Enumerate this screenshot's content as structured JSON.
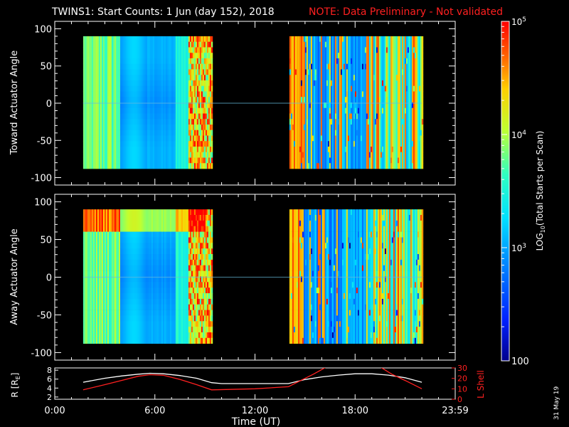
{
  "title": {
    "main": "TWINS1: Start Counts:  1 Jun (day 152), 2018",
    "note": "NOTE: Data Preliminary - Not validated",
    "note_color": "#ff2020"
  },
  "stamp": "31 May 19",
  "colors": {
    "background": "#000000",
    "foreground": "#ffffff",
    "accent_red": "#ff2020"
  },
  "chart_data": [
    {
      "type": "heatmap",
      "panel": "top",
      "ylabel": "Toward Actuator Angle",
      "ylim": [
        -110,
        110
      ],
      "yticks": [
        100,
        50,
        0,
        -50,
        -100
      ],
      "data_y_range": [
        -88,
        90
      ],
      "x_range_hours": [
        0,
        24
      ],
      "data_blocks_hours": [
        [
          1.7,
          9.4
        ],
        [
          14.0,
          22.0
        ]
      ],
      "colorscale": "rainbow (blue-cyan-yellow-red)"
    },
    {
      "type": "heatmap",
      "panel": "middle",
      "ylabel": "Away Actuator Angle",
      "ylim": [
        -110,
        110
      ],
      "yticks": [
        100,
        50,
        0,
        -50,
        -100
      ],
      "data_y_range": [
        -88,
        90
      ],
      "x_range_hours": [
        0,
        24
      ],
      "data_blocks_hours": [
        [
          1.7,
          9.4
        ],
        [
          14.0,
          22.0
        ]
      ],
      "colorscale": "rainbow (blue-cyan-yellow-red)"
    },
    {
      "type": "line",
      "panel": "orbit",
      "ylabel_left": "R [R",
      "ylabel_left_sub": "E",
      "ylabel_left_end": "]",
      "ylabel_right": "L Shell",
      "yticks_left": [
        "8",
        "6",
        "4",
        "2"
      ],
      "yticks_right": [
        "30",
        "20",
        "10",
        "0"
      ],
      "ylim_left": [
        1.5,
        8.5
      ],
      "ylim_right": [
        0,
        30
      ],
      "series": [
        {
          "name": "R",
          "color": "#ffffff",
          "x": [
            1.7,
            3,
            4,
            5,
            5.7,
            6.5,
            7.5,
            8.5,
            9.4,
            10,
            12,
            14,
            15,
            16,
            17,
            18,
            19,
            20,
            21,
            22
          ],
          "y": [
            5.3,
            6.2,
            6.7,
            7.1,
            7.3,
            7.2,
            6.8,
            6.2,
            5.2,
            5.0,
            5.0,
            5.0,
            5.9,
            6.5,
            6.9,
            7.2,
            7.2,
            6.9,
            6.3,
            5.3
          ]
        },
        {
          "name": "L Shell",
          "color": "#ff2020",
          "x": [
            1.7,
            3,
            4,
            5,
            5.7,
            6.5,
            7.5,
            8.5,
            9.4,
            12,
            14,
            14.5,
            15.5,
            16.4,
            19.4,
            20.2,
            21,
            22
          ],
          "y": [
            9,
            14,
            18,
            22,
            23.5,
            23,
            19,
            14,
            9,
            10,
            12,
            16,
            24,
            32,
            32,
            24,
            18,
            10
          ]
        }
      ]
    },
    {
      "type": "colorbar",
      "ylabel": "LOG",
      "ylabel_sub": "10",
      "ylabel_rest": "(Total Starts per Scan)",
      "ticks": [
        {
          "base": "10",
          "exp": "5",
          "value": 100000
        },
        {
          "base": "10",
          "exp": "4",
          "value": 10000
        },
        {
          "base": "10",
          "exp": "3",
          "value": 1000
        },
        {
          "base": "100",
          "exp": "",
          "value": 100
        }
      ],
      "range": [
        100,
        100000
      ],
      "scale": "log"
    }
  ],
  "xaxis": {
    "label": "Time (UT)",
    "ticks": [
      {
        "label": "0:00",
        "hour": 0
      },
      {
        "label": "6:00",
        "hour": 6
      },
      {
        "label": "12:00",
        "hour": 12
      },
      {
        "label": "18:00",
        "hour": 18
      },
      {
        "label": "23:59",
        "hour": 24
      }
    ]
  }
}
